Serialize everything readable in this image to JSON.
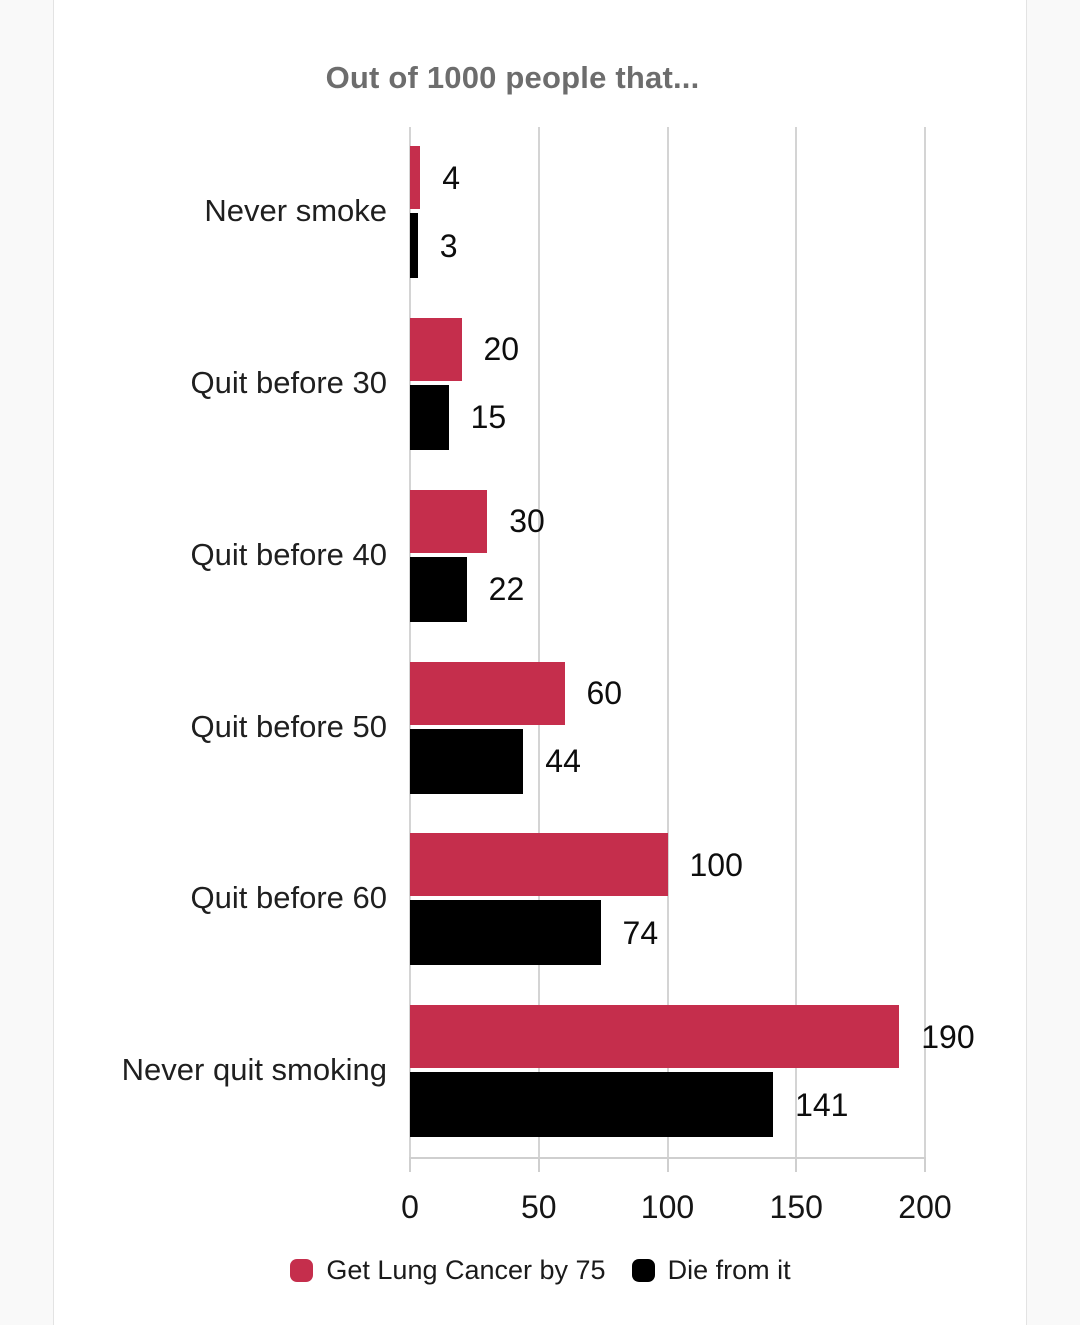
{
  "page": {
    "background": "#ffffff",
    "margin_background": "#f9f9f9",
    "margin_border": "#e3e3e3"
  },
  "chart_data": {
    "type": "bar",
    "orientation": "horizontal",
    "title": "Out of 1000 people that...",
    "title_color": "#6d6d6d",
    "categories": [
      "Never smoke",
      "Quit before 30",
      "Quit before 40",
      "Quit before 50",
      "Quit before 60",
      "Never quit smoking"
    ],
    "series": [
      {
        "name": "Get Lung Cancer by 75",
        "color": "#c52e4c",
        "values": [
          4,
          20,
          30,
          60,
          100,
          190
        ]
      },
      {
        "name": "Die from it",
        "color": "#000000",
        "values": [
          3,
          15,
          22,
          44,
          74,
          141
        ]
      }
    ],
    "value_labels": [
      "4",
      "3",
      "20",
      "15",
      "30",
      "22",
      "60",
      "44",
      "100",
      "74",
      "190",
      "141"
    ],
    "x_ticks": [
      0,
      50,
      100,
      150,
      200
    ],
    "xlim": [
      0,
      200
    ],
    "grid": true,
    "gridline_color": "#d4d4d4",
    "legend_position": "bottom"
  }
}
